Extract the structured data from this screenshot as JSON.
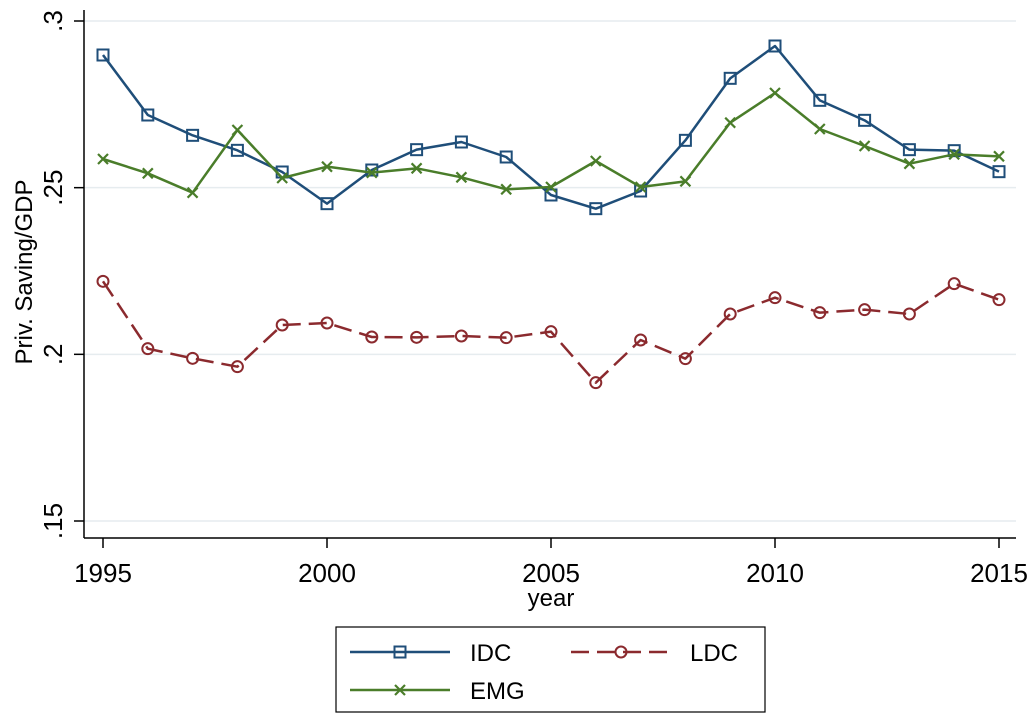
{
  "chart_data": {
    "type": "line",
    "xlabel": "year",
    "ylabel": "Priv. Saving/GDP",
    "xlim": [
      1995,
      2015
    ],
    "ylim": [
      0.15,
      0.3
    ],
    "x_ticks": [
      1995,
      2000,
      2005,
      2010,
      2015
    ],
    "x_tick_labels": [
      "1995",
      "2000",
      "2005",
      "2010",
      "2015"
    ],
    "y_ticks": [
      0.15,
      0.2,
      0.25,
      0.3
    ],
    "y_tick_labels": [
      ".15",
      ".2",
      ".25",
      ".3"
    ],
    "grid": true,
    "legend_position": "bottom",
    "x": [
      1995,
      1996,
      1997,
      1998,
      1999,
      2000,
      2001,
      2002,
      2003,
      2004,
      2005,
      2006,
      2007,
      2008,
      2009,
      2010,
      2011,
      2012,
      2013,
      2014,
      2015
    ],
    "series": [
      {
        "name": "IDC",
        "color": "#1f4e79",
        "marker": "square",
        "dash": "solid",
        "values": [
          0.2898,
          0.2718,
          0.2657,
          0.2612,
          0.2547,
          0.2452,
          0.2553,
          0.2614,
          0.2637,
          0.2592,
          0.2478,
          0.2437,
          0.249,
          0.2642,
          0.2828,
          0.2925,
          0.2762,
          0.2702,
          0.2614,
          0.2611,
          0.2548
        ]
      },
      {
        "name": "LDC",
        "color": "#8b2a2e",
        "marker": "circle",
        "dash": "dashed",
        "values": [
          0.2219,
          0.2017,
          0.1988,
          0.1963,
          0.2088,
          0.2094,
          0.2052,
          0.2051,
          0.2055,
          0.205,
          0.2068,
          0.1915,
          0.2043,
          0.1987,
          0.2121,
          0.217,
          0.2125,
          0.2134,
          0.2121,
          0.2212,
          0.2164
        ]
      },
      {
        "name": "EMG",
        "color": "#4a7d2a",
        "marker": "x",
        "dash": "solid",
        "values": [
          0.2586,
          0.2543,
          0.2485,
          0.2673,
          0.2529,
          0.2563,
          0.2545,
          0.2558,
          0.2531,
          0.2495,
          0.2502,
          0.258,
          0.2502,
          0.2519,
          0.2695,
          0.2784,
          0.2676,
          0.2625,
          0.2572,
          0.26,
          0.2594
        ]
      }
    ]
  }
}
